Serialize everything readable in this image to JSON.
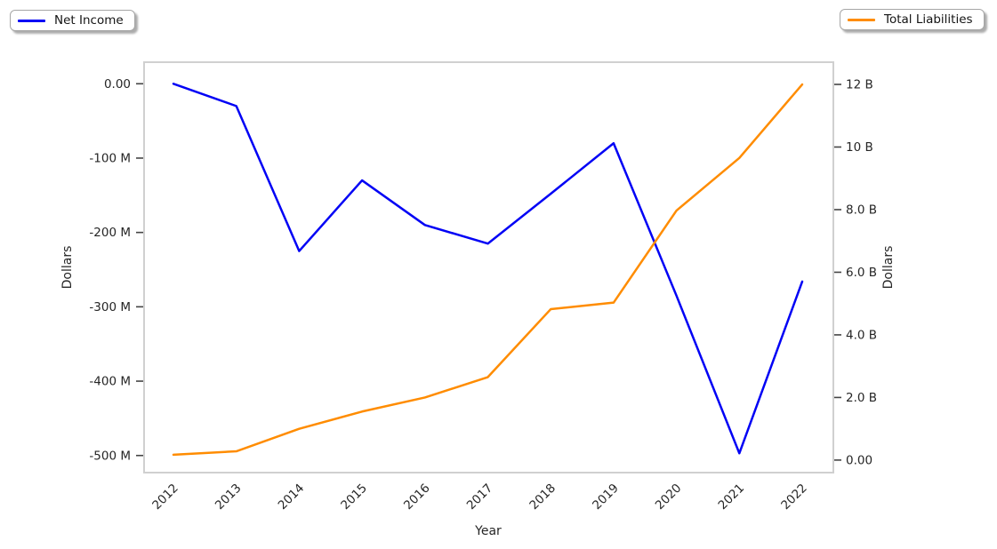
{
  "figure": {
    "background_color": "#ffffff",
    "plot_border_color": "#d0d0d0",
    "tick_color": "#444444",
    "text_color": "#262626"
  },
  "legends": {
    "left": {
      "label": "Net Income",
      "line_color": "#0202f5"
    },
    "right": {
      "label": "Total Liabilities",
      "line_color": "#ff8c00"
    }
  },
  "chart_data": {
    "type": "line",
    "x_label": "Year",
    "categories": [
      "2012",
      "2013",
      "2014",
      "2015",
      "2016",
      "2017",
      "2018",
      "2019",
      "2020",
      "2021",
      "2022"
    ],
    "series": [
      {
        "name": "Net Income",
        "axis": "left",
        "color": "#0202f5",
        "unit": "USD millions",
        "values_usd_millions": [
          0,
          -30,
          -225,
          -130,
          -190,
          -215,
          -148,
          -80,
          -285,
          -497,
          -266
        ]
      },
      {
        "name": "Total Liabilities",
        "axis": "right",
        "color": "#ff8c00",
        "unit": "USD billions",
        "values_usd_billions": [
          0.17,
          0.28,
          1.0,
          1.55,
          2.0,
          2.65,
          4.82,
          5.03,
          7.97,
          9.65,
          12.0
        ]
      }
    ],
    "left_axis": {
      "label": "Dollars",
      "unit_scale": "millions",
      "range_millions": [
        -523,
        29
      ],
      "ticks": [
        {
          "value": 0,
          "label": "0.00"
        },
        {
          "value": -100,
          "label": "-100 M"
        },
        {
          "value": -200,
          "label": "-200 M"
        },
        {
          "value": -300,
          "label": "-300 M"
        },
        {
          "value": -400,
          "label": "-400 M"
        },
        {
          "value": -500,
          "label": "-500 M"
        }
      ]
    },
    "right_axis": {
      "label": "Dollars",
      "unit_scale": "billions",
      "range_billions": [
        -0.4,
        12.71
      ],
      "ticks": [
        {
          "value": 12,
          "label": "12 B"
        },
        {
          "value": 10,
          "label": "10 B"
        },
        {
          "value": 8,
          "label": "8.0 B"
        },
        {
          "value": 6,
          "label": "6.0 B"
        },
        {
          "value": 4,
          "label": "4.0 B"
        },
        {
          "value": 2,
          "label": "2.0 B"
        },
        {
          "value": 0,
          "label": "0.00"
        }
      ]
    },
    "grid": false,
    "legend_position": "outside-top-left-and-top-right",
    "x_tick_rotation_deg": 45
  }
}
